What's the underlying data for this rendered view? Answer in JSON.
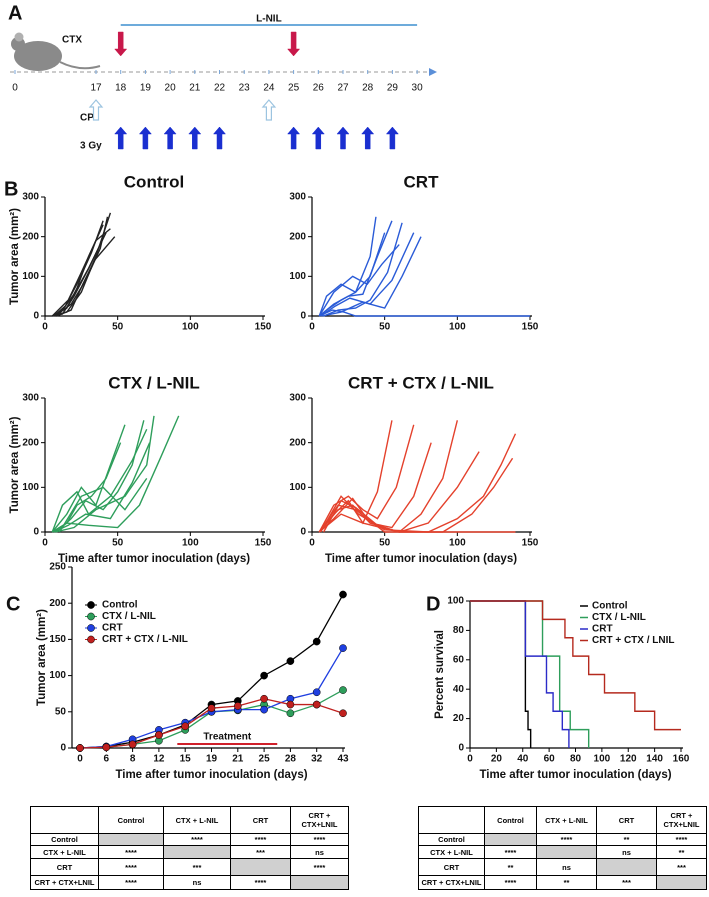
{
  "panel_labels": [
    "A",
    "B",
    "C",
    "D"
  ],
  "timeline": {
    "ticks": [
      0,
      17,
      18,
      19,
      20,
      21,
      22,
      23,
      24,
      25,
      26,
      27,
      28,
      29,
      30
    ],
    "lnil": {
      "label": "L-NIL",
      "start": 18,
      "end": 30
    },
    "ctx": {
      "label": "CTX",
      "days": [
        18,
        25
      ]
    },
    "cp": {
      "label": "CP",
      "days": [
        17,
        24
      ]
    },
    "radiation": {
      "label": "3 Gy",
      "days": [
        18,
        19,
        20,
        21,
        22,
        25,
        26,
        27,
        28,
        29
      ]
    }
  },
  "chart_data": [
    {
      "type": "line",
      "title": "Control",
      "y_label": "Tumor area (mm²)",
      "xlim": [
        0,
        150
      ],
      "xticks": [
        0,
        50,
        100,
        150
      ],
      "ylim": [
        0,
        300
      ],
      "yticks": [
        0,
        100,
        200,
        300
      ],
      "series": [
        {
          "color": "#222222",
          "x": [
            5,
            15,
            25,
            35,
            45
          ],
          "values": [
            0,
            10,
            60,
            150,
            260
          ]
        },
        {
          "color": "#222222",
          "x": [
            5,
            15,
            22,
            30,
            40
          ],
          "values": [
            0,
            20,
            70,
            150,
            230
          ]
        },
        {
          "color": "#222222",
          "x": [
            7,
            18,
            28,
            38,
            43
          ],
          "values": [
            0,
            30,
            90,
            170,
            250
          ]
        },
        {
          "color": "#222222",
          "x": [
            5,
            12,
            20,
            30,
            42
          ],
          "values": [
            0,
            5,
            50,
            120,
            210
          ]
        },
        {
          "color": "#222222",
          "x": [
            8,
            18,
            26,
            34,
            48
          ],
          "values": [
            0,
            15,
            80,
            140,
            200
          ]
        },
        {
          "color": "#222222",
          "x": [
            6,
            14,
            24,
            32,
            40
          ],
          "values": [
            0,
            25,
            95,
            160,
            240
          ]
        },
        {
          "color": "#222222",
          "x": [
            5,
            16,
            25,
            35,
            45
          ],
          "values": [
            0,
            40,
            110,
            190,
            220
          ]
        },
        {
          "color": "#222222",
          "x": [
            9,
            20,
            30,
            38
          ],
          "values": [
            0,
            55,
            120,
            180
          ]
        }
      ]
    },
    {
      "type": "line",
      "title": "CRT",
      "xlim": [
        0,
        150
      ],
      "xticks": [
        0,
        50,
        100,
        150
      ],
      "ylim": [
        0,
        300
      ],
      "yticks": [
        0,
        100,
        200,
        300
      ],
      "series": [
        {
          "color": "#2a5bd7",
          "x": [
            5,
            12,
            20,
            30,
            40,
            44
          ],
          "values": [
            0,
            20,
            40,
            60,
            150,
            250
          ]
        },
        {
          "color": "#2a5bd7",
          "x": [
            5,
            15,
            25,
            35,
            45,
            55
          ],
          "values": [
            0,
            30,
            50,
            55,
            150,
            240
          ]
        },
        {
          "color": "#2a5bd7",
          "x": [
            5,
            10,
            20,
            30,
            40,
            50
          ],
          "values": [
            0,
            50,
            80,
            60,
            100,
            210
          ]
        },
        {
          "color": "#2a5bd7",
          "x": [
            8,
            18,
            30,
            40,
            52,
            62
          ],
          "values": [
            0,
            15,
            20,
            40,
            110,
            235
          ]
        },
        {
          "color": "#2a5bd7",
          "x": [
            5,
            15,
            28,
            38,
            48,
            60
          ],
          "values": [
            0,
            60,
            100,
            80,
            130,
            180
          ]
        },
        {
          "color": "#2a5bd7",
          "x": [
            6,
            16,
            26,
            40,
            55,
            70
          ],
          "values": [
            0,
            25,
            45,
            30,
            90,
            210
          ]
        },
        {
          "color": "#2a5bd7",
          "x": [
            7,
            20,
            35,
            50,
            62,
            75
          ],
          "values": [
            0,
            10,
            35,
            20,
            100,
            200
          ]
        },
        {
          "color": "#2a5bd7",
          "x": [
            5,
            14,
            22,
            30,
            150
          ],
          "values": [
            0,
            15,
            10,
            0,
            0
          ]
        }
      ]
    },
    {
      "type": "line",
      "title": "CTX / L-NIL",
      "y_label": "Tumor area (mm²)",
      "x_label": "Time after tumor inoculation (days)",
      "xlim": [
        0,
        150
      ],
      "xticks": [
        0,
        50,
        100,
        150
      ],
      "ylim": [
        0,
        300
      ],
      "yticks": [
        0,
        100,
        200,
        300
      ],
      "series": [
        {
          "color": "#2e9e5b",
          "x": [
            5,
            15,
            25,
            35,
            45,
            55
          ],
          "values": [
            0,
            40,
            100,
            60,
            150,
            240
          ]
        },
        {
          "color": "#2e9e5b",
          "x": [
            5,
            15,
            22,
            32,
            42,
            52
          ],
          "values": [
            0,
            20,
            60,
            80,
            120,
            200
          ]
        },
        {
          "color": "#2e9e5b",
          "x": [
            8,
            18,
            28,
            40,
            50,
            60,
            68
          ],
          "values": [
            0,
            30,
            70,
            50,
            90,
            150,
            250
          ]
        },
        {
          "color": "#2e9e5b",
          "x": [
            5,
            12,
            22,
            30,
            45,
            60,
            70
          ],
          "values": [
            0,
            60,
            90,
            40,
            80,
            160,
            230
          ]
        },
        {
          "color": "#2e9e5b",
          "x": [
            6,
            16,
            28,
            45,
            60,
            72
          ],
          "values": [
            0,
            15,
            40,
            30,
            110,
            200
          ]
        },
        {
          "color": "#2e9e5b",
          "x": [
            7,
            20,
            35,
            55,
            70,
            75
          ],
          "values": [
            0,
            10,
            50,
            80,
            150,
            260
          ]
        },
        {
          "color": "#2e9e5b",
          "x": [
            5,
            15,
            30,
            50,
            65,
            80,
            92
          ],
          "values": [
            0,
            20,
            15,
            10,
            60,
            170,
            260
          ]
        },
        {
          "color": "#2e9e5b",
          "x": [
            10,
            25,
            40,
            55,
            70
          ],
          "values": [
            0,
            80,
            100,
            50,
            120
          ]
        }
      ]
    },
    {
      "type": "line",
      "title": "CRT + CTX / L-NIL",
      "x_label": "Time after tumor inoculation (days)",
      "xlim": [
        0,
        150
      ],
      "xticks": [
        0,
        50,
        100,
        150
      ],
      "ylim": [
        0,
        300
      ],
      "yticks": [
        0,
        100,
        200,
        300
      ],
      "series": [
        {
          "color": "#e4412c",
          "x": [
            5,
            15,
            25,
            35,
            45,
            55
          ],
          "values": [
            0,
            40,
            70,
            20,
            90,
            250
          ]
        },
        {
          "color": "#e4412c",
          "x": [
            5,
            15,
            25,
            35,
            45,
            58,
            70
          ],
          "values": [
            0,
            60,
            80,
            50,
            30,
            100,
            240
          ]
        },
        {
          "color": "#e4412c",
          "x": [
            5,
            18,
            28,
            40,
            55,
            70,
            82
          ],
          "values": [
            0,
            50,
            60,
            20,
            10,
            80,
            200
          ]
        },
        {
          "color": "#e4412c",
          "x": [
            8,
            20,
            30,
            45,
            60,
            75,
            90,
            100
          ],
          "values": [
            0,
            70,
            55,
            15,
            0,
            40,
            120,
            250
          ]
        },
        {
          "color": "#e4412c",
          "x": [
            5,
            15,
            28,
            40,
            60,
            80,
            100,
            115
          ],
          "values": [
            0,
            30,
            75,
            20,
            0,
            20,
            100,
            180
          ]
        },
        {
          "color": "#e4412c",
          "x": [
            6,
            20,
            32,
            50,
            80,
            100,
            118,
            130,
            140
          ],
          "values": [
            0,
            80,
            40,
            5,
            0,
            30,
            80,
            150,
            220
          ]
        },
        {
          "color": "#e4412c",
          "x": [
            5,
            18,
            30,
            50,
            90,
            110,
            125,
            138
          ],
          "values": [
            0,
            60,
            50,
            0,
            0,
            40,
            100,
            165
          ]
        },
        {
          "color": "#e4412c",
          "x": [
            5,
            20,
            35,
            60,
            140
          ],
          "values": [
            0,
            40,
            20,
            0,
            0
          ]
        }
      ]
    },
    {
      "type": "line",
      "markers": true,
      "y_label": "Tumor area (mm²)",
      "x_label": "Time after tumor inoculation (days)",
      "annotation": "Treatment",
      "categories": [
        "0",
        "6",
        "8",
        "12",
        "15",
        "19",
        "21",
        "25",
        "28",
        "32",
        "43"
      ],
      "ylim": [
        0,
        250
      ],
      "yticks": [
        0,
        50,
        100,
        150,
        200,
        250
      ],
      "legend": "top-left",
      "series": [
        {
          "name": "Control",
          "color": "#000000",
          "values": [
            0,
            2,
            8,
            18,
            32,
            60,
            65,
            100,
            120,
            147,
            212
          ]
        },
        {
          "name": "CTX / L-NIL",
          "color": "#2e9e5b",
          "values": [
            0,
            1,
            5,
            10,
            25,
            50,
            52,
            60,
            48,
            60,
            80
          ]
        },
        {
          "name": "CRT",
          "color": "#1f3fe0",
          "values": [
            0,
            2,
            12,
            25,
            35,
            50,
            53,
            53,
            68,
            77,
            138
          ]
        },
        {
          "name": "CRT + CTX / L-NIL",
          "color": "#c0201e",
          "values": [
            0,
            1,
            5,
            18,
            30,
            55,
            58,
            68,
            60,
            60,
            48
          ]
        }
      ]
    },
    {
      "type": "line",
      "y_label": "Percent survival",
      "x_label": "Time after tumor inoculation (days)",
      "xlim": [
        0,
        160
      ],
      "xticks": [
        0,
        20,
        40,
        60,
        80,
        100,
        120,
        140,
        160
      ],
      "ylim": [
        0,
        100
      ],
      "yticks": [
        0,
        20,
        40,
        60,
        80,
        100
      ],
      "legend": "top-right",
      "series": [
        {
          "name": "Control",
          "color": "#000000",
          "x": [
            0,
            42,
            42,
            44,
            44,
            46,
            46
          ],
          "values": [
            100,
            100,
            25,
            25,
            12.5,
            12.5,
            0
          ]
        },
        {
          "name": "CTX / L-NIL",
          "color": "#2e9e5b",
          "x": [
            0,
            55,
            55,
            68,
            68,
            76,
            76,
            90,
            90
          ],
          "values": [
            100,
            100,
            62.5,
            62.5,
            25,
            25,
            12.5,
            12.5,
            0
          ]
        },
        {
          "name": "CRT",
          "color": "#2b2bc8",
          "x": [
            0,
            42,
            42,
            58,
            58,
            63,
            63,
            70,
            70,
            75,
            75
          ],
          "values": [
            100,
            100,
            62.5,
            62.5,
            37.5,
            37.5,
            25,
            25,
            12.5,
            12.5,
            0
          ]
        },
        {
          "name": "CRT + CTX / LNIL",
          "color": "#b52a1e",
          "x": [
            0,
            55,
            55,
            72,
            72,
            78,
            78,
            90,
            90,
            102,
            102,
            125,
            125,
            140,
            140,
            160
          ],
          "values": [
            100,
            100,
            87.5,
            87.5,
            75,
            75,
            62.5,
            62.5,
            50,
            50,
            37.5,
            37.5,
            25,
            25,
            12.5,
            12.5
          ]
        }
      ]
    }
  ],
  "tables": [
    {
      "columns": [
        "Control",
        "CTX + L-NIL",
        "CRT",
        "CRT + CTX+LNIL"
      ],
      "rows": [
        {
          "label": "Control",
          "cells": [
            null,
            "****",
            "****",
            "****"
          ]
        },
        {
          "label": "CTX + L-NIL",
          "cells": [
            "****",
            null,
            "***",
            "ns"
          ]
        },
        {
          "label": "CRT",
          "cells": [
            "****",
            "***",
            null,
            "****"
          ]
        },
        {
          "label": "CRT + CTX+LNIL",
          "cells": [
            "****",
            "ns",
            "****",
            null
          ]
        }
      ]
    },
    {
      "columns": [
        "Control",
        "CTX + L-NIL",
        "CRT",
        "CRT + CTX+LNIL"
      ],
      "rows": [
        {
          "label": "Control",
          "cells": [
            null,
            "****",
            "**",
            "****"
          ]
        },
        {
          "label": "CTX + L-NIL",
          "cells": [
            "****",
            null,
            "ns",
            "**"
          ]
        },
        {
          "label": "CRT",
          "cells": [
            "**",
            "ns",
            null,
            "***"
          ]
        },
        {
          "label": "CRT + CTX+LNIL",
          "cells": [
            "****",
            "**",
            "***",
            null
          ]
        }
      ]
    }
  ]
}
